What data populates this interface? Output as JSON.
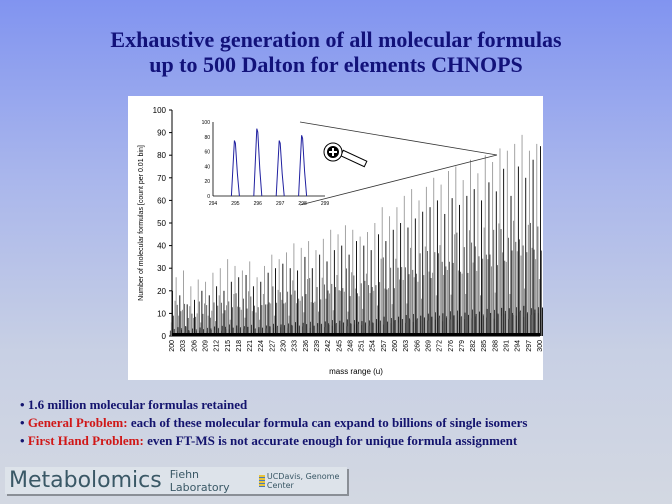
{
  "title": {
    "line1": "Exhaustive generation of all molecular formulas",
    "line2": "up to 500 Dalton for elements CHNOPS"
  },
  "bullets": [
    {
      "prefix": "",
      "text": "1.6 million molecular formulas retained"
    },
    {
      "prefix": "General Problem:",
      "text": " each of these molecular formula can expand to billions of single isomers"
    },
    {
      "prefix": "First Hand Problem:",
      "text": " even FT-MS is not accurate enough for unique formula assignment"
    }
  ],
  "footer": {
    "brand": "Metabolomics",
    "lab": "Fiehn Laboratory",
    "center": "UCDavis, Genome Center"
  },
  "colors": {
    "title": "#12127a",
    "problem": "#d01818",
    "inset_line": "#2020a0"
  },
  "chart_data": [
    {
      "type": "bar",
      "xlabel": "mass range (u)",
      "ylabel": "Number of molecular formulas [count per 0.01 bin]",
      "ylim": [
        0,
        100
      ],
      "yticks": [
        "0",
        "10",
        "20",
        "30",
        "40",
        "50",
        "60",
        "70",
        "80",
        "90",
        "100"
      ],
      "xtick_labels": [
        "200",
        "203",
        "206",
        "209",
        "212",
        "215",
        "218",
        "221",
        "224",
        "227",
        "230",
        "233",
        "236",
        "239",
        "242",
        "245",
        "248",
        "251",
        "254",
        "257",
        "260",
        "263",
        "266",
        "269",
        "272",
        "276",
        "279",
        "282",
        "285",
        "288",
        "291",
        "294",
        "297",
        "300"
      ],
      "x_start": 200,
      "peak_max_per_nominal_mass": [
        20,
        26,
        18,
        29,
        14,
        22,
        16,
        25,
        20,
        24,
        18,
        28,
        22,
        30,
        20,
        34,
        24,
        31,
        26,
        29,
        27,
        33,
        22,
        26,
        24,
        31,
        28,
        36,
        30,
        34,
        32,
        37,
        30,
        41,
        29,
        39,
        35,
        42,
        30,
        38,
        36,
        43,
        33,
        47,
        38,
        45,
        40,
        49,
        36,
        47,
        42,
        44,
        40,
        46,
        38,
        50,
        45,
        57,
        42,
        53,
        47,
        57,
        50,
        62,
        48,
        65,
        52,
        60,
        55,
        66,
        57,
        70,
        60,
        67,
        54,
        73,
        61,
        75,
        58,
        69,
        62,
        78,
        65,
        72,
        60,
        80,
        68,
        77,
        64,
        83,
        74,
        82,
        62,
        85,
        75,
        89,
        70,
        82,
        78,
        85,
        84
      ]
    },
    {
      "type": "line",
      "name": "inset",
      "xlim": [
        294,
        299
      ],
      "ylim": [
        0,
        100
      ],
      "xticks": [
        "294",
        "295",
        "296",
        "297",
        "298",
        "299"
      ],
      "yticks": [
        "0",
        "20",
        "40",
        "60",
        "80",
        "100"
      ],
      "peaks": [
        {
          "x": 295.0,
          "y": 75
        },
        {
          "x": 296.0,
          "y": 91
        },
        {
          "x": 297.0,
          "y": 75
        },
        {
          "x": 298.0,
          "y": 82
        }
      ]
    }
  ]
}
